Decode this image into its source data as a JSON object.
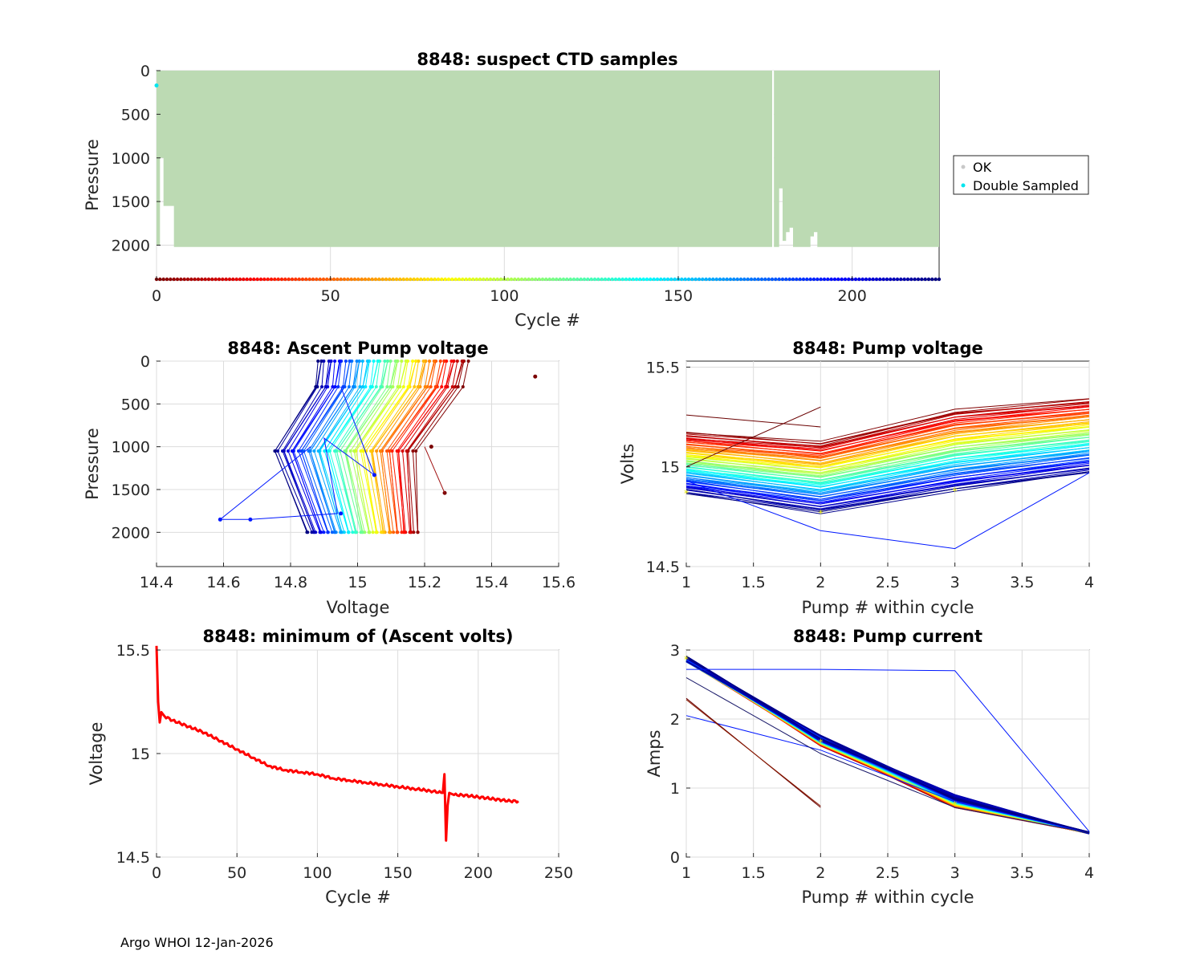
{
  "footer": "Argo WHOI 12-Jan-2026",
  "colors": {
    "ok_fill": "#bcdab3",
    "ok_marker": "#c8c8c8",
    "double": "#00e5ee",
    "min_volts": "#ff0000",
    "grid": "#dcdcdc"
  },
  "chart_data": [
    {
      "id": "suspect",
      "type": "scatter",
      "title": "8848: suspect CTD samples",
      "xlabel": "Cycle #",
      "ylabel": "Pressure",
      "xlim": [
        0,
        225
      ],
      "ylim": [
        0,
        2400
      ],
      "y_reversed": true,
      "xticks": [
        "0",
        "50",
        "100",
        "150",
        "200"
      ],
      "yticks": [
        "0",
        "500",
        "1000",
        "1500",
        "2000"
      ],
      "legend": [
        "OK",
        "Double Sampled"
      ],
      "legend_position": "outside-right",
      "ok_depth_by_cycle": [
        [
          0,
          2000
        ],
        [
          1,
          1000
        ],
        [
          2,
          1550
        ],
        [
          5,
          2020
        ],
        [
          176,
          2020
        ],
        [
          177,
          0
        ],
        [
          177.5,
          2020
        ],
        [
          178,
          2020
        ],
        [
          179,
          1350
        ],
        [
          180,
          1950
        ],
        [
          181,
          1850
        ],
        [
          182,
          1800
        ],
        [
          183,
          2020
        ],
        [
          187,
          2020
        ],
        [
          188,
          1900
        ],
        [
          189,
          1850
        ],
        [
          190,
          2020
        ],
        [
          225,
          2020
        ]
      ],
      "double_sampled": [
        [
          0,
          170
        ]
      ],
      "cycle_strip_pressure": 2400
    },
    {
      "id": "ascent",
      "type": "line",
      "title": "8848: Ascent Pump voltage",
      "xlabel": "Voltage",
      "ylabel": "Pressure",
      "xlim": [
        14.4,
        15.6
      ],
      "ylim": [
        0,
        2400
      ],
      "y_reversed": true,
      "xticks": [
        "14.4",
        "14.6",
        "14.8",
        "15",
        "15.2",
        "15.4",
        "15.6"
      ],
      "yticks": [
        "0",
        "500",
        "1000",
        "1500",
        "2000"
      ],
      "pressure_levels": [
        2000,
        1050,
        300,
        0
      ],
      "voltage_range_first_cycle": [
        15.18,
        15.17,
        15.31,
        15.33
      ],
      "voltage_range_last_cycle": [
        14.85,
        14.75,
        14.87,
        14.88
      ],
      "outliers": [
        [
          15.53,
          180
        ],
        [
          15.26,
          1540
        ],
        [
          15.22,
          1000
        ],
        [
          14.59,
          1850
        ],
        [
          14.68,
          1850
        ],
        [
          14.95,
          1780
        ],
        [
          15.05,
          1330
        ]
      ]
    },
    {
      "id": "pumpvolt",
      "type": "line",
      "title": "8848: Pump voltage",
      "xlabel": "Pump # within cycle",
      "ylabel": "Volts",
      "xlim": [
        1,
        4
      ],
      "ylim": [
        14.5,
        15.53
      ],
      "xticks": [
        "1",
        "1.5",
        "2",
        "2.5",
        "3",
        "3.5",
        "4"
      ],
      "yticks": [
        "14.5",
        "15",
        "15.5"
      ],
      "x": [
        1,
        2,
        3,
        4
      ],
      "series_first_cycle": [
        15.17,
        15.12,
        15.28,
        15.34
      ],
      "series_last_cycle": [
        14.87,
        14.77,
        14.88,
        14.97
      ],
      "outlier_series": [
        [
          14.93,
          14.68,
          14.59,
          14.97
        ],
        [
          15.26,
          15.2,
          15.25,
          15.3
        ]
      ]
    },
    {
      "id": "minvolt",
      "type": "line",
      "title": "8848: minimum of (Ascent volts)",
      "xlabel": "Cycle #",
      "ylabel": "Voltage",
      "xlim": [
        0,
        250
      ],
      "ylim": [
        14.5,
        15.5
      ],
      "xticks": [
        "0",
        "50",
        "100",
        "150",
        "200",
        "250"
      ],
      "yticks": [
        "14.5",
        "15",
        "15.5"
      ],
      "x": [
        0,
        1,
        2,
        3,
        5,
        10,
        20,
        30,
        40,
        50,
        60,
        70,
        80,
        90,
        100,
        110,
        120,
        130,
        140,
        150,
        160,
        170,
        178,
        179,
        180,
        181,
        182,
        185,
        190,
        200,
        210,
        220,
        225
      ],
      "values": [
        15.52,
        15.25,
        15.15,
        15.2,
        15.18,
        15.16,
        15.13,
        15.1,
        15.06,
        15.02,
        14.98,
        14.94,
        14.92,
        14.91,
        14.9,
        14.88,
        14.87,
        14.86,
        14.85,
        14.84,
        14.83,
        14.82,
        14.81,
        14.9,
        14.58,
        14.75,
        14.81,
        14.8,
        14.8,
        14.79,
        14.78,
        14.77,
        14.77
      ]
    },
    {
      "id": "pumpcurrent",
      "type": "line",
      "title": "8848: Pump current",
      "xlabel": "Pump # within cycle",
      "ylabel": "Amps",
      "xlim": [
        1,
        4
      ],
      "ylim": [
        0,
        3
      ],
      "xticks": [
        "1",
        "1.5",
        "2",
        "2.5",
        "3",
        "3.5",
        "4"
      ],
      "yticks": [
        "0",
        "1",
        "2",
        "3"
      ],
      "x": [
        1,
        2,
        3,
        4
      ],
      "main_series": [
        2.87,
        1.65,
        0.75,
        0.35
      ],
      "outlier_series": [
        [
          2.72,
          2.72,
          2.7,
          0.37
        ],
        [
          2.05,
          1.55,
          0.8,
          0.35
        ],
        [
          2.3,
          0.72
        ],
        [
          2.6,
          1.5,
          0.72,
          0.35
        ]
      ]
    }
  ]
}
